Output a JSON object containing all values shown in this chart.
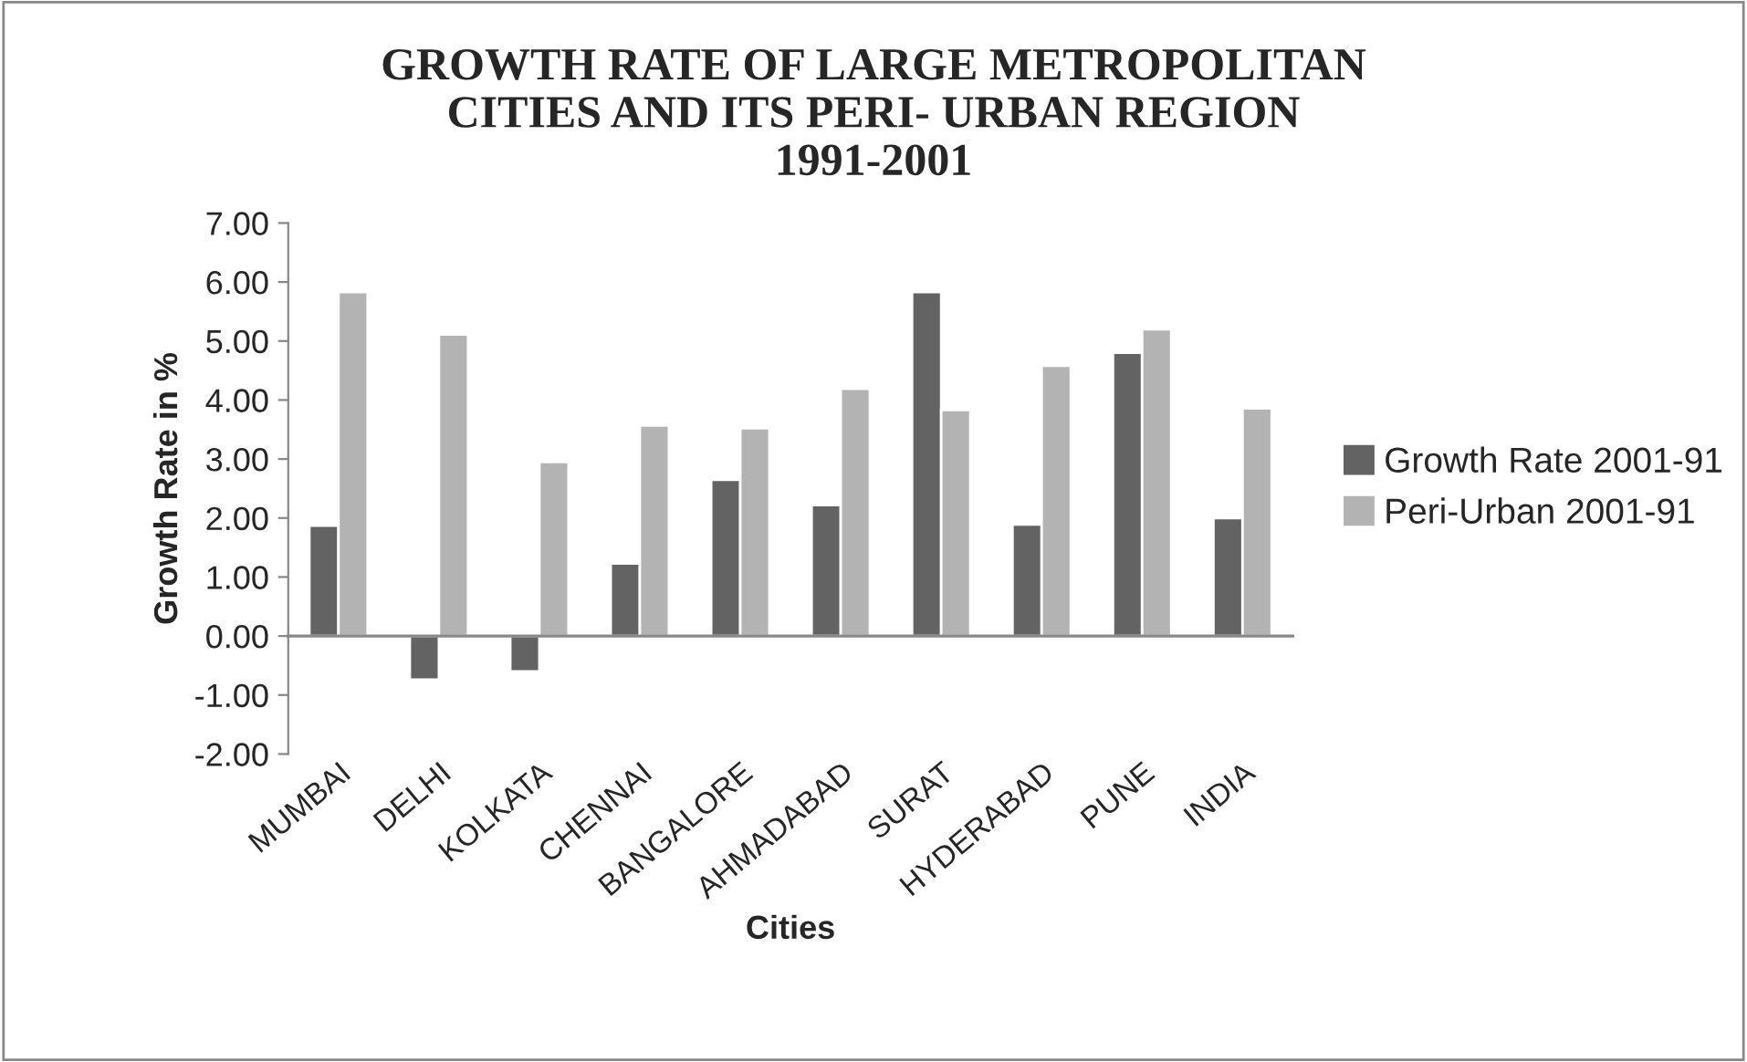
{
  "chart_data": {
    "type": "bar",
    "title": "GROWTH RATE OF LARGE METROPOLITAN\nCITIES AND ITS PERI- URBAN REGION\n1991-2001",
    "xlabel": "Cities",
    "ylabel": "Growth Rate in %",
    "categories": [
      "MUMBAI",
      "DELHI",
      "KOLKATA",
      "CHENNAI",
      "BANGALORE",
      "AHMADABAD",
      "SURAT",
      "HYDERABAD",
      "PUNE",
      "INDIA"
    ],
    "series": [
      {
        "name": "Growth Rate 2001-91",
        "color": "#636363",
        "values": [
          1.87,
          -0.74,
          -0.6,
          1.23,
          2.65,
          2.22,
          5.83,
          1.89,
          4.8,
          2.0
        ]
      },
      {
        "name": "Peri-Urban 2001-91",
        "color": "#b3b3b3",
        "values": [
          5.83,
          5.11,
          2.95,
          3.57,
          3.52,
          4.19,
          3.83,
          4.58,
          5.2,
          3.86
        ]
      }
    ],
    "ylim": [
      -2,
      7
    ],
    "yticks": [
      {
        "value": -2,
        "label": "-2.00"
      },
      {
        "value": -1,
        "label": "-1.00"
      },
      {
        "value": 0,
        "label": "0.00"
      },
      {
        "value": 1,
        "label": "1.00"
      },
      {
        "value": 2,
        "label": "2.00"
      },
      {
        "value": 3,
        "label": "3.00"
      },
      {
        "value": 4,
        "label": "4.00"
      },
      {
        "value": 5,
        "label": "5.00"
      },
      {
        "value": 6,
        "label": "6.00"
      },
      {
        "value": 7,
        "label": "7.00"
      }
    ],
    "legend": "right"
  }
}
